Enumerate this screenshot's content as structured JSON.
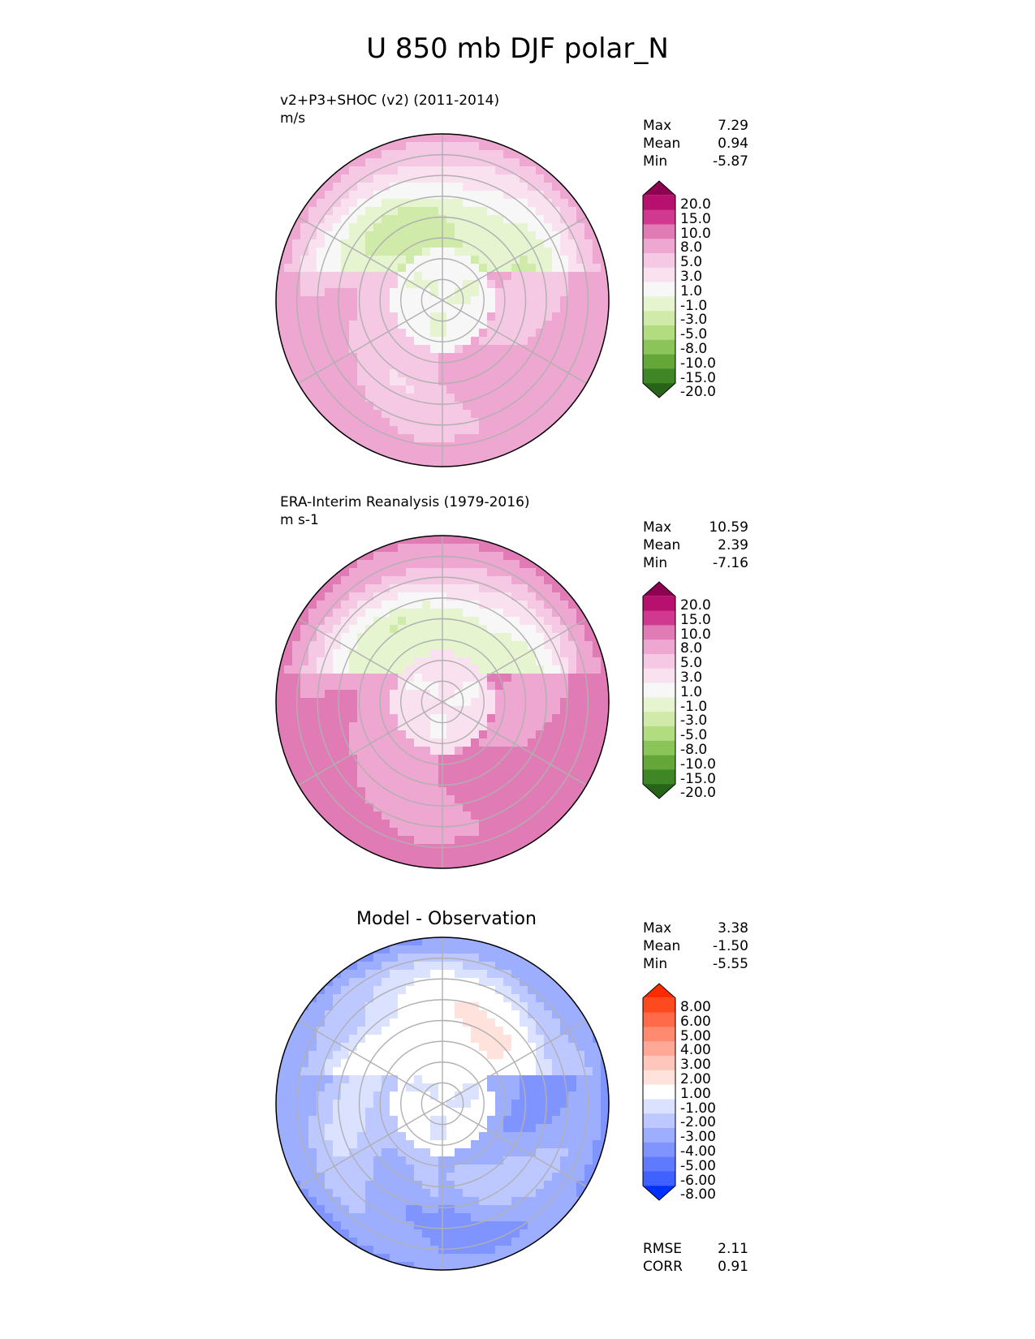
{
  "figure": {
    "title": "U 850 mb DJF polar_N"
  },
  "panels": [
    {
      "title_line1": "v2+P3+SHOC (v2) (2011-2014)",
      "title_line2": "m/s",
      "stats": [
        {
          "label": "Max",
          "value": "7.29"
        },
        {
          "label": "Mean",
          "value": "0.94"
        },
        {
          "label": "Min",
          "value": "-5.87"
        }
      ]
    },
    {
      "title_line1": "ERA-Interim Reanalysis (1979-2016)",
      "title_line2": "m s-1",
      "stats": [
        {
          "label": "Max",
          "value": "10.59"
        },
        {
          "label": "Mean",
          "value": "2.39"
        },
        {
          "label": "Min",
          "value": "-7.16"
        }
      ]
    },
    {
      "title_center": "Model - Observation",
      "stats": [
        {
          "label": "Max",
          "value": "3.38"
        },
        {
          "label": "Mean",
          "value": "-1.50"
        },
        {
          "label": "Min",
          "value": "-5.55"
        }
      ],
      "metrics": [
        {
          "label": "RMSE",
          "value": "2.11"
        },
        {
          "label": "CORR",
          "value": "0.91"
        }
      ]
    }
  ],
  "colorbars": {
    "field": {
      "levels": [
        "20.0",
        "15.0",
        "10.0",
        "8.0",
        "5.0",
        "3.0",
        "1.0",
        "-1.0",
        "-3.0",
        "-5.0",
        "-8.0",
        "-10.0",
        "-15.0",
        "-20.0"
      ],
      "colors": [
        "#8e0152",
        "#b7106f",
        "#d0398f",
        "#e17bb6",
        "#eda7d1",
        "#f5c8e3",
        "#fae1ef",
        "#f7f7f7",
        "#e6f5d0",
        "#cfeaa9",
        "#b1dc7f",
        "#8bc55a",
        "#65a638",
        "#3f8726",
        "#276419"
      ]
    },
    "diff": {
      "levels": [
        "8.00",
        "6.00",
        "5.00",
        "4.00",
        "3.00",
        "2.00",
        "1.00",
        "-1.00",
        "-2.00",
        "-3.00",
        "-4.00",
        "-5.00",
        "-6.00",
        "-8.00"
      ],
      "colors": [
        "#ff2a00",
        "#ff4a20",
        "#ff6a48",
        "#ff8a70",
        "#ffa898",
        "#ffc6bc",
        "#ffe2dc",
        "#ffffff",
        "#dbe2ff",
        "#bcc8ff",
        "#9daeff",
        "#7f94ff",
        "#607aff",
        "#4060ff",
        "#0030ff"
      ]
    }
  },
  "chart_data": [
    {
      "type": "heatmap",
      "title": "v2+P3+SHOC (v2) (2011-2014)",
      "units": "m/s",
      "projection": "polar_N",
      "stats": {
        "max": 7.29,
        "mean": 0.94,
        "min": -5.87
      },
      "zones": {
        "near_pole": -0.5,
        "eurasia_sector": -3,
        "atlantic_sector": 4,
        "pacific_sector": 5,
        "mid_latitude_rim": 6
      }
    },
    {
      "type": "heatmap",
      "title": "ERA-Interim Reanalysis (1979-2016)",
      "units": "m s-1",
      "projection": "polar_N",
      "stats": {
        "max": 10.59,
        "mean": 2.39,
        "min": -7.16
      },
      "zones": {
        "near_pole": 1.5,
        "eurasia_sector": -2,
        "atlantic_sector": 7,
        "pacific_sector": 8,
        "mid_latitude_rim": 9
      }
    },
    {
      "type": "heatmap",
      "title": "Model - Observation",
      "projection": "polar_N",
      "stats": {
        "max": 3.38,
        "mean": -1.5,
        "min": -5.55,
        "rmse": 2.11,
        "corr": 0.91
      },
      "zones": {
        "near_pole": -0.5,
        "eurasia_sector": 0.5,
        "atlantic_sector": -2.5,
        "pacific_sector": -3.5,
        "mid_latitude_rim": -4
      }
    }
  ]
}
